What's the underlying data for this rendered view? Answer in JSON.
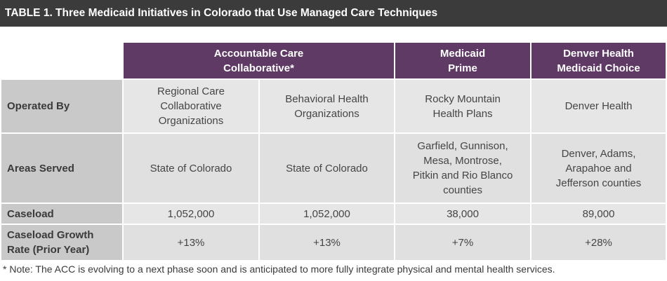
{
  "title": "TABLE 1. Three Medicaid Initiatives in Colorado that Use Managed Care Techniques",
  "headers": {
    "acc": "Accountable Care\nCollaborative*",
    "prime": "Medicaid\nPrime",
    "denver": "Denver Health\nMedicaid Choice"
  },
  "rows": [
    {
      "label": "Operated By",
      "cells": [
        "Regional Care\nCollaborative\nOrganizations",
        "Behavioral Health\nOrganizations",
        "Rocky Mountain\nHealth Plans",
        "Denver Health"
      ]
    },
    {
      "label": "Areas Served",
      "cells": [
        "State of Colorado",
        "State of Colorado",
        "Garfield, Gunnison,\nMesa, Montrose,\nPitkin and Rio Blanco\ncounties",
        "Denver, Adams,\nArapahoe and\nJefferson counties"
      ]
    },
    {
      "label": "Caseload",
      "cells": [
        "1,052,000",
        "1,052,000",
        "38,000",
        "89,000"
      ]
    },
    {
      "label": "Caseload Growth\nRate (Prior Year)",
      "cells": [
        "+13%",
        "+13%",
        "+7%",
        "+28%"
      ]
    }
  ],
  "footnote": "* Note: The ACC is evolving to a next phase soon and is anticipated to more fully integrate physical and mental health services."
}
